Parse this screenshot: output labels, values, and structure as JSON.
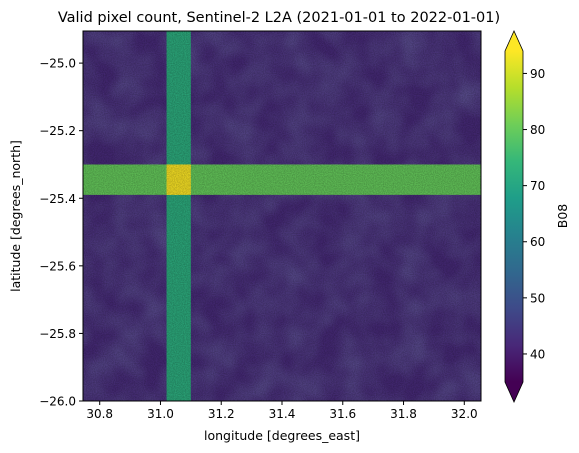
{
  "chart_data": {
    "type": "heatmap",
    "title": "Valid pixel count, Sentinel-2 L2A (2021-01-01 to 2022-01-01)",
    "xlabel": "longitude [degrees_east]",
    "ylabel": "latitude [degrees_north]",
    "xlim": [
      30.745,
      32.055
    ],
    "ylim": [
      -26.0,
      -24.905
    ],
    "xticks": [
      "30.8",
      "31.0",
      "31.2",
      "31.4",
      "31.6",
      "31.8",
      "32.0"
    ],
    "xtick_values": [
      30.8,
      31.0,
      31.2,
      31.4,
      31.6,
      31.8,
      32.0
    ],
    "yticks": [
      "−25.0",
      "−25.2",
      "−25.4",
      "−25.6",
      "−25.8",
      "−26.0"
    ],
    "ytick_values": [
      -25.0,
      -25.2,
      -25.4,
      -25.6,
      -25.8,
      -26.0
    ],
    "colorbar": {
      "label": "B08",
      "colormap": "viridis",
      "extend": "both",
      "vmin": 35,
      "vmax": 94,
      "ticks": [
        "40",
        "50",
        "60",
        "70",
        "80",
        "90"
      ],
      "tick_values": [
        40,
        50,
        60,
        70,
        80,
        90
      ],
      "colors": [
        "#440154",
        "#482878",
        "#3e4a89",
        "#31688e",
        "#26828e",
        "#1f9e89",
        "#35b779",
        "#6ece58",
        "#b5de2b",
        "#fde725"
      ]
    },
    "regions": [
      {
        "name": "background",
        "value": 42
      },
      {
        "name": "vertical-swath",
        "lon_range": [
          31.02,
          31.1
        ],
        "value": 72
      },
      {
        "name": "horizontal-swath",
        "lat_range": [
          -25.39,
          -25.3
        ],
        "value": 80
      },
      {
        "name": "overlap",
        "value": 94
      }
    ]
  }
}
